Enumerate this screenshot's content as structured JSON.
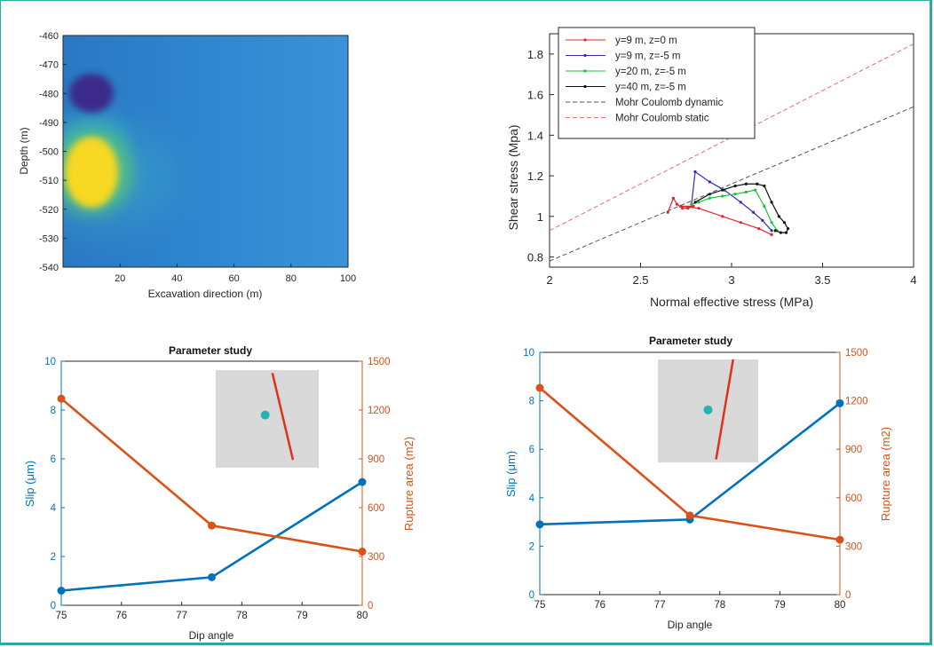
{
  "colors": {
    "border": "#2ba9a3",
    "left_axis": "#0072bd",
    "right_axis": "#d95319",
    "inset_bg": "#d9d9d9",
    "inset_dot": "#26b3b3",
    "inset_line": "#e0301e"
  },
  "chart_data": [
    {
      "type": "heatmap",
      "title": "",
      "xlabel": "Excavation direction (m)",
      "ylabel": "Depth (m)",
      "xlim": [
        0,
        100
      ],
      "ylim": [
        -540,
        -460
      ],
      "xticks": [
        "20",
        "40",
        "60",
        "80",
        "100"
      ],
      "yticks": [
        "-460",
        "-470",
        "-480",
        "-490",
        "-500",
        "-510",
        "-520",
        "-530",
        "-540"
      ],
      "features": [
        {
          "kind": "low",
          "x": 14,
          "y": -481,
          "color": "#3b2a8a"
        },
        {
          "kind": "high",
          "x": 12,
          "y": -507,
          "color": "#f7d820"
        }
      ],
      "background": "#2b7fc6"
    },
    {
      "type": "line",
      "title": "",
      "xlabel": "Normal effective stress (MPa)",
      "ylabel": "Shear stress (Mpa)",
      "xlim": [
        2,
        4
      ],
      "ylim": [
        0.75,
        1.9
      ],
      "xticks": [
        "2",
        "2.5",
        "3",
        "3.5",
        "4"
      ],
      "yticks": [
        "0.8",
        "1",
        "1.2",
        "1.4",
        "1.6",
        "1.8"
      ],
      "legend": "top-left",
      "series": [
        {
          "name": "y=9 m, z=0 m",
          "color": "#e8222d",
          "style": "solid",
          "x": [
            2.65,
            2.68,
            2.7,
            2.73,
            2.76,
            2.79,
            2.72,
            2.82,
            2.95,
            3.05,
            3.15,
            3.22
          ],
          "y": [
            1.02,
            1.09,
            1.06,
            1.04,
            1.04,
            1.05,
            1.05,
            1.04,
            1.0,
            0.97,
            0.94,
            0.91
          ]
        },
        {
          "name": "y=9 m, z=-5 m",
          "color": "#2f2fb0",
          "style": "solid",
          "x": [
            2.78,
            2.8,
            2.88,
            2.96,
            3.05,
            3.12,
            3.17,
            3.22
          ],
          "y": [
            1.06,
            1.22,
            1.17,
            1.13,
            1.07,
            1.02,
            0.98,
            0.93
          ]
        },
        {
          "name": "y=20 m, z=-5 m",
          "color": "#19c13a",
          "style": "solid",
          "x": [
            2.78,
            2.82,
            2.88,
            2.95,
            3.02,
            3.08,
            3.13,
            3.18,
            3.22,
            3.25
          ],
          "y": [
            1.06,
            1.07,
            1.09,
            1.1,
            1.11,
            1.12,
            1.13,
            1.05,
            0.97,
            0.93
          ]
        },
        {
          "name": "y=40 m, z=-5 m",
          "color": "#111111",
          "style": "solid",
          "x": [
            2.8,
            2.88,
            2.95,
            3.02,
            3.08,
            3.14,
            3.18,
            3.22,
            3.26,
            3.29,
            3.31,
            3.3,
            3.27,
            3.24
          ],
          "y": [
            1.07,
            1.11,
            1.13,
            1.15,
            1.16,
            1.16,
            1.15,
            1.07,
            1.0,
            0.97,
            0.94,
            0.92,
            0.92,
            0.93
          ]
        },
        {
          "name": "Mohr Coulomb dynamic",
          "color": "#555555",
          "style": "dashed",
          "x": [
            2,
            4
          ],
          "y": [
            0.78,
            1.54
          ]
        },
        {
          "name": "Mohr Coulomb static",
          "color": "#ee6b6b",
          "style": "dashed",
          "x": [
            2,
            4
          ],
          "y": [
            0.93,
            1.85
          ]
        }
      ]
    },
    {
      "type": "line",
      "title": "Parameter study",
      "xlabel": "Dip angle",
      "ylabel": "Slip (μm)",
      "ylabel_right": "Rupture area (m2)",
      "xlim": [
        75,
        80
      ],
      "ylim": [
        0,
        10
      ],
      "ylim_right": [
        0,
        1500
      ],
      "xticks": [
        "75",
        "76",
        "77",
        "78",
        "79",
        "80"
      ],
      "yticks": [
        "0",
        "2",
        "4",
        "6",
        "8",
        "10"
      ],
      "yticks_right": [
        "0",
        "300",
        "600",
        "900",
        "1200",
        "1500"
      ],
      "series": [
        {
          "name": "",
          "axis": "left",
          "color": "#0072bd",
          "x": [
            75,
            77.5,
            80
          ],
          "values": [
            0.6,
            1.15,
            5.05
          ]
        },
        {
          "name": "",
          "axis": "right",
          "color": "#d95319",
          "x": [
            75,
            77.5,
            80
          ],
          "values": [
            1270,
            490,
            330
          ]
        }
      ],
      "inset": {
        "dot": [
          0.48,
          0.46
        ],
        "line": [
          [
            0.55,
            0.03
          ],
          [
            0.75,
            0.92
          ]
        ]
      }
    },
    {
      "type": "line",
      "title": "Parameter study",
      "xlabel": "Dip angle",
      "ylabel": "Slip (μm)",
      "ylabel_right": "Rupture area (m2)",
      "xlim": [
        75,
        80
      ],
      "ylim": [
        0,
        10
      ],
      "ylim_right": [
        0,
        1500
      ],
      "xticks": [
        "75",
        "76",
        "77",
        "78",
        "79",
        "80"
      ],
      "yticks": [
        "0",
        "2",
        "4",
        "6",
        "8",
        "10"
      ],
      "yticks_right": [
        "0",
        "300",
        "600",
        "900",
        "1200",
        "1500"
      ],
      "series": [
        {
          "name": "",
          "axis": "left",
          "color": "#0072bd",
          "x": [
            75,
            77.5,
            80
          ],
          "values": [
            2.9,
            3.1,
            7.9
          ]
        },
        {
          "name": "",
          "axis": "right",
          "color": "#d95319",
          "x": [
            75,
            77.5,
            80
          ],
          "values": [
            1280,
            490,
            340
          ]
        }
      ],
      "inset": {
        "dot": [
          0.5,
          0.49
        ],
        "line": [
          [
            0.75,
            0.0
          ],
          [
            0.58,
            0.97
          ]
        ]
      }
    }
  ]
}
